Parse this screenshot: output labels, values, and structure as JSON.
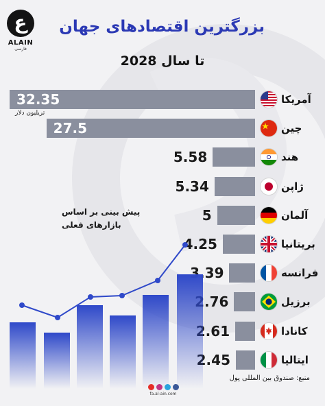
{
  "brand": {
    "logo_letter": "ع",
    "logo_name": "ALAIN",
    "logo_sub": "فارسی",
    "site": "fa.al-ain.com"
  },
  "header": {
    "title": "بزرگترین اقتصادهای جهان",
    "subtitle": "تا سال 2028"
  },
  "notes": {
    "unit": "تریلیون دلار",
    "forecast": "پیش بینی بر اساس بازارهای فعلی",
    "source": "منبع: صندوق بین المللی پول"
  },
  "colors": {
    "title": "#2b39b4",
    "bar": "#8a8f9e",
    "trend_bars": "#2f49c9",
    "trend_line": "#2f49c9"
  },
  "chart_data": {
    "type": "bar",
    "orientation": "horizontal",
    "title": "بزرگترین اقتصادهای جهان",
    "subtitle": "تا سال 2028",
    "unit": "تریلیون دلار",
    "categories": [
      "آمریکا",
      "چین",
      "هند",
      "ژاپن",
      "آلمان",
      "بریتانیا",
      "فرانسه",
      "برزیل",
      "کانادا",
      "ایتالیا"
    ],
    "values": [
      32.35,
      27.5,
      5.58,
      5.34,
      5,
      4.25,
      3.39,
      2.76,
      2.61,
      2.45
    ],
    "value_labels": [
      "32.35",
      "27.5",
      "5.58",
      "5.34",
      "5",
      "4.25",
      "3.39",
      "2.76",
      "2.61",
      "2.45"
    ],
    "flags": [
      "flag-usa-icon",
      "flag-china-icon",
      "flag-india-icon",
      "flag-japan-icon",
      "flag-germany-icon",
      "flag-uk-icon",
      "flag-france-icon",
      "flag-brazil-icon",
      "flag-canada-icon",
      "flag-italy-icon"
    ],
    "grid": false,
    "legend": "none"
  }
}
